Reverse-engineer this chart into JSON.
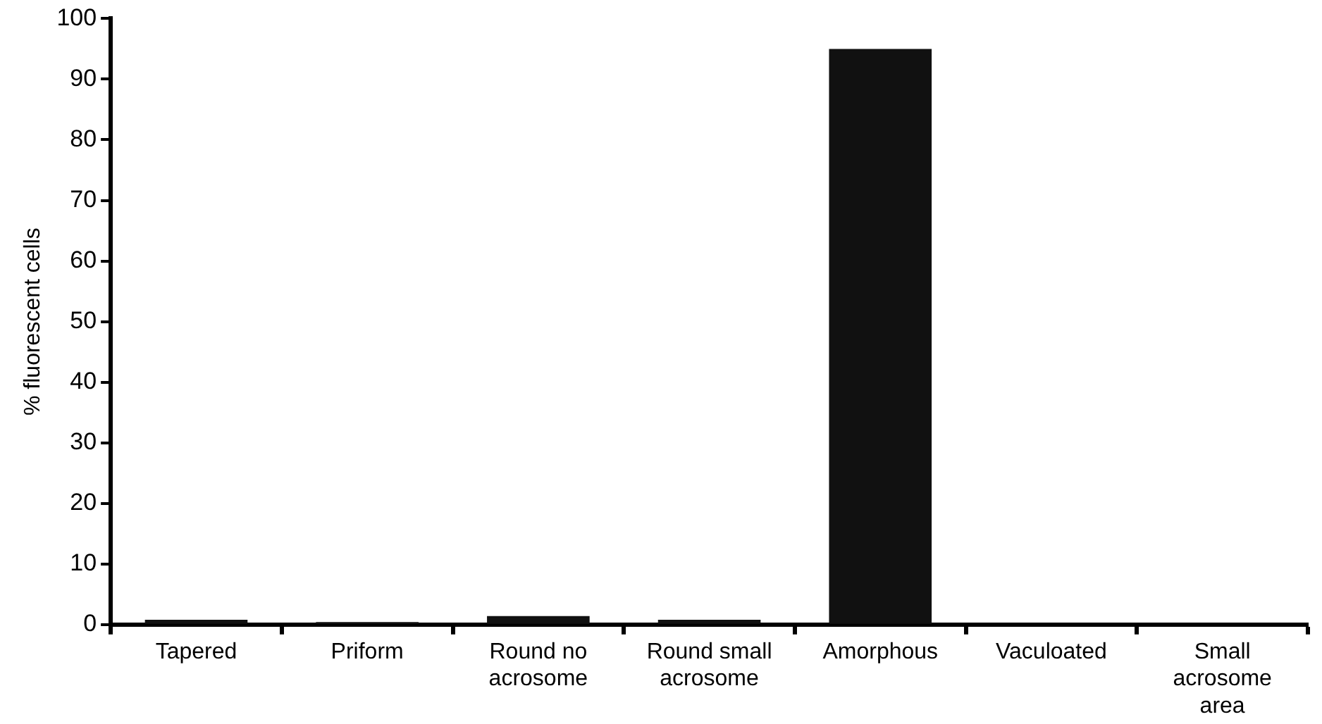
{
  "chart_data": {
    "type": "bar",
    "ylabel": "% fluorescent cells",
    "categories": [
      "Tapered",
      "Priform",
      "Round no\nacrosome",
      "Round small\nacrosome",
      "Amorphous",
      "Vaculoated",
      "Small\nacrosome\narea"
    ],
    "values": [
      0.8,
      0.4,
      1.4,
      0.8,
      95,
      0,
      0
    ],
    "color": "#111111",
    "ylim": [
      0,
      100
    ],
    "yticks": [
      0,
      10,
      20,
      30,
      40,
      50,
      60,
      70,
      80,
      90,
      100
    ],
    "grid": false,
    "legend": false
  }
}
